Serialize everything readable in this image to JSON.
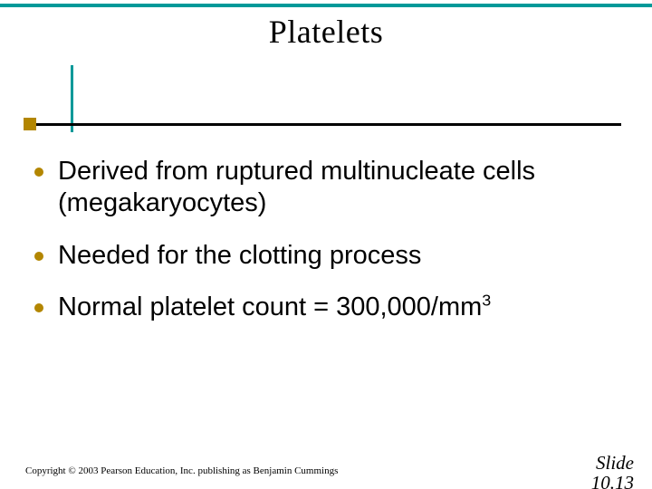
{
  "colors": {
    "teal": "#009999",
    "gold": "#b38600",
    "black": "#000000",
    "title": "#000000"
  },
  "title": "Platelets",
  "bullets": [
    {
      "text": "Derived from ruptured multinucleate cells (megakaryocytes)"
    },
    {
      "text": "Needed for the clotting process"
    },
    {
      "html": "Normal platelet count = 300,000/mm<sup>3</sup>"
    }
  ],
  "footer": {
    "copyright": "Copyright © 2003 Pearson Education, Inc. publishing as Benjamin Cummings",
    "slide_label": "Slide",
    "slide_num": "10.13"
  },
  "typography": {
    "title_fontsize": 36,
    "bullet_fontsize": 29,
    "copyright_fontsize": 11,
    "slidenum_fontsize": 21
  }
}
